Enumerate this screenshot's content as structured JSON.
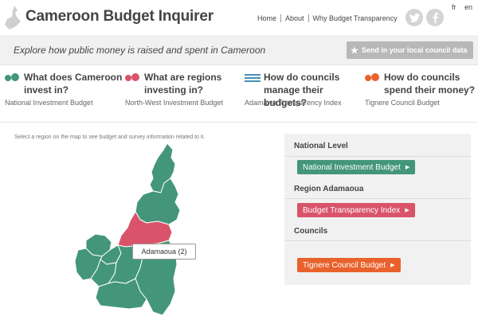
{
  "header": {
    "title": "Cameroon Budget Inquirer",
    "nav": [
      "Home",
      "About",
      "Why Budget Transparency"
    ],
    "lang": [
      "fr",
      "en"
    ]
  },
  "tagline": "Explore how public money is raised and spent in Cameroon",
  "send_button": "Send in your local council data",
  "questions": [
    {
      "title": "What does Cameroon invest in?",
      "sub": "National Investment Budget",
      "icon": "two-dots-green-icon"
    },
    {
      "title": "What are regions investing in?",
      "sub": "North-West Investment Budget",
      "icon": "two-dots-red-icon"
    },
    {
      "title": "How do councils manage their budgets?",
      "sub": "Adamawa Transparency Index",
      "icon": "lines-blue-icon"
    },
    {
      "title": "How do councils spend their money?",
      "sub": "Tignere Council Budget",
      "icon": "two-dots-orange-icon"
    }
  ],
  "map_hint": "Select a region on the map to see budget and survey information related to it.",
  "tooltip": "Adamaoua (2)",
  "panel": {
    "national_label": "National Level",
    "national_button": "National Investment Budget",
    "region_label": "Region Adamaoua",
    "region_button": "Budget Transparency Index",
    "councils_label": "Councils",
    "council_button": "Tignere Council Budget"
  },
  "colors": {
    "green": "#43967a",
    "red": "#d9546a",
    "blue": "#4a90b8",
    "orange": "#e9622c"
  }
}
